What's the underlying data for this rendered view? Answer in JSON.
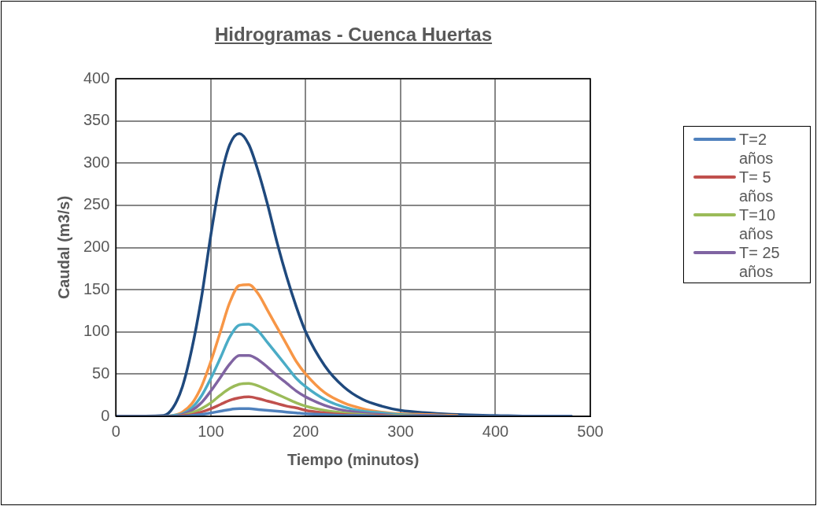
{
  "chart_data": {
    "type": "line",
    "title": "Hidrogramas - Cuenca Huertas",
    "xlabel": "Tiempo (minutos)",
    "ylabel": "Caudal (m3/s)",
    "x": [
      0,
      50,
      60,
      70,
      80,
      90,
      100,
      110,
      120,
      130,
      140,
      150,
      160,
      170,
      180,
      190,
      200,
      220,
      240,
      260,
      280,
      300,
      330,
      360,
      400,
      440,
      480
    ],
    "xlim": [
      0,
      500
    ],
    "xticks": [
      0,
      100,
      200,
      300,
      400,
      500
    ],
    "ylim": [
      0,
      400
    ],
    "yticks": [
      0,
      50,
      100,
      150,
      200,
      250,
      300,
      350,
      400
    ],
    "grid": true,
    "legend": "right",
    "marker": "none",
    "line_style": "solid",
    "series": [
      {
        "name": "T=2 años",
        "color": "#4f81bd",
        "values": [
          0,
          0,
          0,
          0,
          1,
          2,
          4,
          6,
          8,
          9,
          9,
          8,
          7,
          6,
          5,
          4,
          3,
          2,
          1,
          1,
          0,
          0,
          0,
          0,
          0,
          0,
          0
        ]
      },
      {
        "name": "T= 5 años",
        "color": "#c0504d",
        "values": [
          0,
          0,
          0,
          1,
          2,
          5,
          9,
          14,
          19,
          22,
          23,
          21,
          18,
          15,
          12,
          10,
          7,
          4,
          2,
          1,
          1,
          0,
          0,
          0,
          null,
          null,
          null
        ]
      },
      {
        "name": "T=10 años",
        "color": "#9bbb59",
        "values": [
          0,
          0,
          0,
          1,
          4,
          9,
          16,
          25,
          33,
          38,
          39,
          36,
          31,
          26,
          21,
          16,
          12,
          7,
          4,
          2,
          1,
          1,
          0,
          0,
          null,
          null,
          null
        ]
      },
      {
        "name": "T= 25 años",
        "color": "#8064a2",
        "values": [
          0,
          0,
          0,
          2,
          7,
          16,
          30,
          46,
          62,
          72,
          72,
          67,
          58,
          48,
          39,
          30,
          23,
          13,
          7,
          4,
          2,
          1,
          1,
          0,
          0,
          0,
          0
        ]
      },
      {
        "color": "#4bacc6",
        "values": [
          0,
          0,
          1,
          3,
          10,
          24,
          45,
          69,
          94,
          108,
          109,
          101,
          87,
          73,
          59,
          45,
          35,
          20,
          11,
          6,
          4,
          2,
          1,
          0,
          0,
          0,
          0
        ]
      },
      {
        "color": "#f79646",
        "values": [
          0,
          0,
          1,
          5,
          15,
          35,
          65,
          100,
          135,
          155,
          156,
          145,
          125,
          105,
          85,
          65,
          50,
          28,
          16,
          9,
          5,
          3,
          2,
          1,
          null,
          null,
          null
        ]
      },
      {
        "color": "#1f497d",
        "values": [
          0,
          1,
          10,
          35,
          80,
          140,
          215,
          280,
          322,
          335,
          322,
          290,
          250,
          205,
          165,
          130,
          100,
          60,
          35,
          20,
          12,
          7,
          4,
          2,
          1,
          0,
          0
        ]
      }
    ]
  }
}
